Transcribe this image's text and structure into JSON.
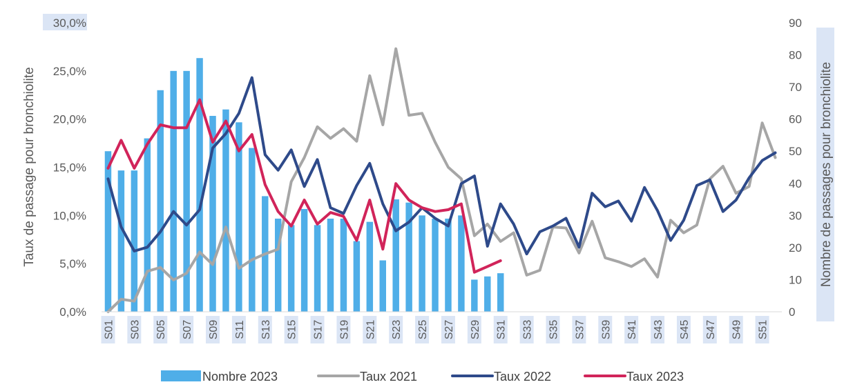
{
  "chart_data": {
    "type": "bar+line",
    "y_left_label": "Taux de passage pour bronchiolite",
    "y_right_label": "Nombre de passages pour bronchiolite",
    "y_left_ticks": [
      "0,0%",
      "5,0%",
      "10,0%",
      "15,0%",
      "20,0%",
      "25,0%",
      "30,0%"
    ],
    "y_right_ticks": [
      "0",
      "10",
      "20",
      "30",
      "40",
      "50",
      "60",
      "70",
      "80",
      "90"
    ],
    "y_left_range": [
      0,
      30
    ],
    "y_right_range": [
      0,
      90
    ],
    "weeks": [
      "S01",
      "S02",
      "S03",
      "S04",
      "S05",
      "S06",
      "S07",
      "S08",
      "S09",
      "S10",
      "S11",
      "S12",
      "S13",
      "S14",
      "S15",
      "S16",
      "S17",
      "S18",
      "S19",
      "S20",
      "S21",
      "S22",
      "S23",
      "S24",
      "S25",
      "S26",
      "S27",
      "S28",
      "S29",
      "S30",
      "S31",
      "S32",
      "S33",
      "S34",
      "S35",
      "S36",
      "S37",
      "S38",
      "S39",
      "S40",
      "S41",
      "S42",
      "S43",
      "S44",
      "S45",
      "S46",
      "S47",
      "S48",
      "S49",
      "S50",
      "S51",
      "S52"
    ],
    "x_tick_labels": [
      "S01",
      "S03",
      "S05",
      "S07",
      "S09",
      "S11",
      "S13",
      "S15",
      "S17",
      "S19",
      "S21",
      "S23",
      "S25",
      "S27",
      "S29",
      "S31",
      "S33",
      "S35",
      "S37",
      "S39",
      "S41",
      "S43",
      "S45",
      "S47",
      "S49",
      "S51"
    ],
    "bar_series": {
      "name": "Nombre 2023",
      "axis": "right",
      "color": "#4faee8",
      "values": [
        50,
        44,
        44,
        54,
        69,
        75,
        75,
        79,
        61,
        63,
        59,
        51,
        36,
        29,
        27,
        32,
        27,
        29,
        29,
        22,
        28,
        16,
        35,
        34,
        30,
        29,
        29,
        30,
        10,
        11,
        12
      ]
    },
    "line_series": [
      {
        "name": "Taux 2021",
        "axis": "left",
        "color": "#a6a6a6",
        "values": [
          0.0,
          1.3,
          1.1,
          4.2,
          4.6,
          3.3,
          4.0,
          6.2,
          4.9,
          8.8,
          4.5,
          5.4,
          6.0,
          6.5,
          13.5,
          16.0,
          19.2,
          18.0,
          19.0,
          17.7,
          24.5,
          19.4,
          27.3,
          20.4,
          20.6,
          17.6,
          15.0,
          13.8,
          7.9,
          9.1,
          7.3,
          8.2,
          3.8,
          4.3,
          8.8,
          8.7,
          6.1,
          9.4,
          5.6,
          5.2,
          4.7,
          5.5,
          3.6,
          9.5,
          8.2,
          9.0,
          13.8,
          15.1,
          12.3,
          13.0,
          19.6,
          16.0
        ]
      },
      {
        "name": "Taux 2022",
        "axis": "left",
        "color": "#2e4a8a",
        "values": [
          13.8,
          8.8,
          6.3,
          6.7,
          8.3,
          10.4,
          9.0,
          10.6,
          17.0,
          18.5,
          20.6,
          24.3,
          16.3,
          14.7,
          16.8,
          13.0,
          15.8,
          10.8,
          10.2,
          13.1,
          15.4,
          11.2,
          8.4,
          9.3,
          10.8,
          9.7,
          8.9,
          13.3,
          14.1,
          6.8,
          11.2,
          9.1,
          6.0,
          8.3,
          8.9,
          9.7,
          6.7,
          12.3,
          10.9,
          11.5,
          9.4,
          12.9,
          10.5,
          7.4,
          9.5,
          13.1,
          13.7,
          10.4,
          11.6,
          13.9,
          15.7,
          16.5
        ]
      },
      {
        "name": "Taux 2023",
        "axis": "left",
        "color": "#d1245a",
        "values": [
          14.9,
          17.8,
          14.9,
          17.4,
          19.4,
          19.1,
          19.1,
          22.0,
          17.6,
          19.8,
          16.7,
          18.4,
          13.2,
          10.4,
          8.9,
          11.6,
          9.1,
          10.3,
          9.9,
          7.4,
          11.6,
          6.5,
          13.3,
          11.6,
          10.8,
          10.4,
          10.6,
          11.2,
          4.1,
          4.7,
          5.3
        ]
      }
    ],
    "legend_position": "bottom",
    "grid": false
  }
}
